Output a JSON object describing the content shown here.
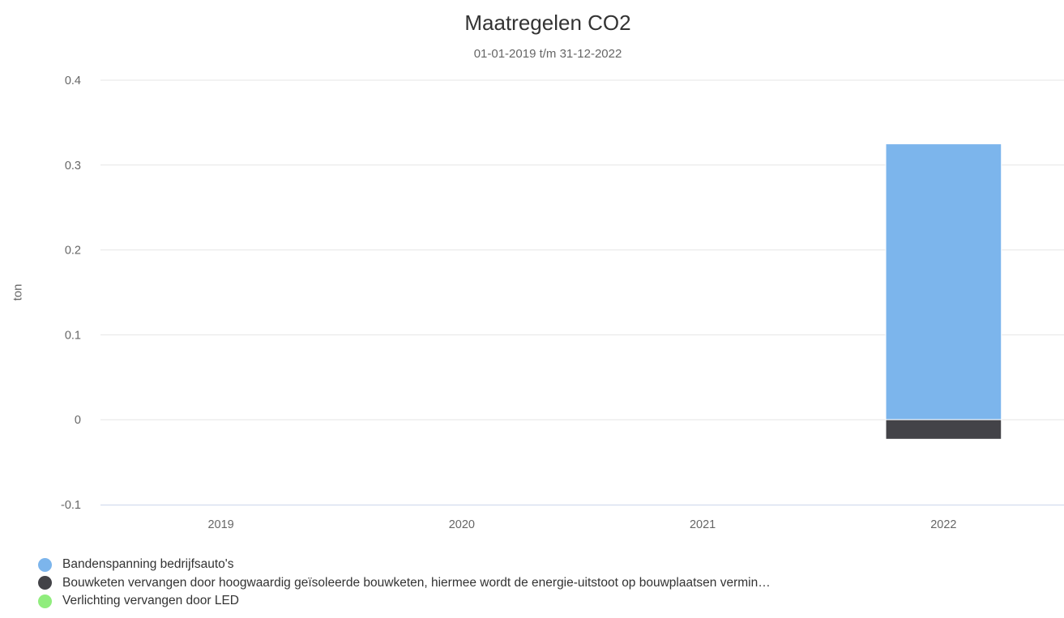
{
  "chart_data": {
    "type": "bar",
    "stacked": true,
    "title": "Maatregelen CO2",
    "subtitle": "01-01-2019 t/m 31-12-2022",
    "ylabel": "ton",
    "xlabel": "",
    "categories": [
      "2019",
      "2020",
      "2021",
      "2022"
    ],
    "ylim": [
      -0.1,
      0.4
    ],
    "yticks": [
      "-0.1",
      "0",
      "0.1",
      "0.2",
      "0.3",
      "0.4"
    ],
    "grid": true,
    "legend_position": "bottom-left",
    "series": [
      {
        "name": "Bandenspanning bedrijfsauto's",
        "color": "#7cb5ec",
        "values": [
          0,
          0,
          0,
          0.325
        ]
      },
      {
        "name": "Bouwketen vervangen door hoogwaardig geïsoleerde bouwketen, hiermee wordt de energie-uitstoot op bouwplaatsen vermin…",
        "color": "#434348",
        "values": [
          0,
          0,
          0,
          -0.023
        ]
      },
      {
        "name": "Verlichting vervangen door LED",
        "color": "#90ed7d",
        "values": [
          0,
          0,
          0,
          0
        ]
      }
    ]
  }
}
